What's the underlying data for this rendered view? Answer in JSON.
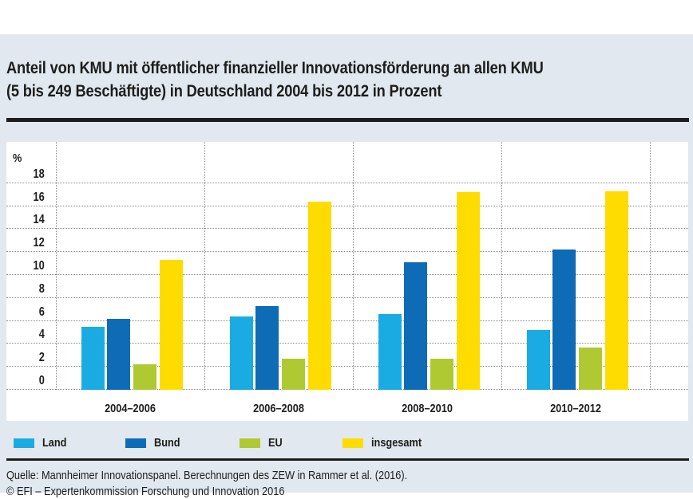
{
  "title": {
    "line1": "Anteil von KMU mit öffentlicher finanzieller Innovationsförderung an allen KMU",
    "line2": "(5 bis 249 Beschäftigte) in Deutschland 2004 bis 2012 in Prozent"
  },
  "chart_data": {
    "type": "bar",
    "title": "Anteil von KMU mit öffentlicher finanzieller Innovationsförderung an allen KMU (5 bis 249 Beschäftigte) in Deutschland 2004 bis 2012 in Prozent",
    "ylabel": "%",
    "xlabel": "",
    "ylim": [
      0,
      18
    ],
    "yticks": [
      18,
      16,
      14,
      12,
      10,
      8,
      6,
      4,
      2,
      0
    ],
    "grid": "dotted",
    "legend_position": "bottom",
    "categories": [
      "2004–2006",
      "2006–2008",
      "2008–2010",
      "2010–2012"
    ],
    "series": [
      {
        "name": "Land",
        "color": "#1aabe3",
        "values": [
          5.5,
          6.4,
          6.6,
          5.2
        ]
      },
      {
        "name": "Bund",
        "color": "#0e6bb6",
        "values": [
          6.2,
          7.3,
          11.1,
          12.2
        ]
      },
      {
        "name": "EU",
        "color": "#afc933",
        "values": [
          2.2,
          2.7,
          2.7,
          3.7
        ]
      },
      {
        "name": "insgesamt",
        "color": "#ffdc00",
        "values": [
          11.3,
          16.4,
          17.2,
          17.3
        ]
      }
    ]
  },
  "source": {
    "quelle": "Quelle: Mannheimer Innovationspanel. Berechnungen des ZEW in Rammer et al. (2016).",
    "copyright": "© EFI – Expertenkommission Forschung und Innovation 2016"
  },
  "colors": {
    "background": "#e1e8ef",
    "panel": "#ffffff",
    "rule": "#1d1d1b",
    "grid": "#8a8a8a",
    "text": "#1d1d1b"
  }
}
